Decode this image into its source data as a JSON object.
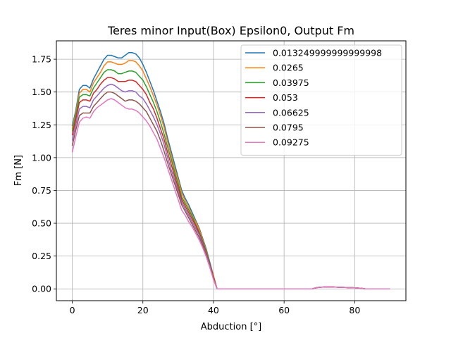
{
  "chart_data": {
    "type": "line",
    "title": "Teres minor Input(Box) Epsilon0, Output Fm",
    "xlabel": "Abduction [°]",
    "ylabel": "Fm [N]",
    "xlim": [
      -4.5,
      94.5
    ],
    "ylim": [
      -0.09,
      1.89
    ],
    "xticks": [
      0,
      20,
      40,
      60,
      80
    ],
    "yticks": [
      0.0,
      0.25,
      0.5,
      0.75,
      1.0,
      1.25,
      1.5,
      1.75
    ],
    "ytick_labels": [
      "0.00",
      "0.25",
      "0.50",
      "0.75",
      "1.00",
      "1.25",
      "1.50",
      "1.75"
    ],
    "grid": true,
    "legend_position": "top-right",
    "base_x": [
      0,
      1,
      2,
      3,
      4,
      5,
      6,
      7,
      8,
      9,
      10,
      11,
      12,
      13,
      14,
      15,
      16,
      17,
      18,
      19,
      20,
      21,
      22,
      23,
      24,
      25,
      26,
      27,
      28,
      29,
      30,
      31,
      32,
      33,
      34,
      35,
      36,
      37,
      38,
      39,
      40,
      41,
      45,
      50,
      55,
      60,
      65,
      68,
      69,
      70,
      72,
      74,
      76,
      78,
      80,
      81,
      82,
      83,
      85,
      87,
      90
    ],
    "series": [
      {
        "name": "0.013249999999999998",
        "color": "#1f77b4",
        "y": [
          1.24,
          1.36,
          1.52,
          1.55,
          1.55,
          1.53,
          1.6,
          1.65,
          1.7,
          1.75,
          1.78,
          1.78,
          1.77,
          1.76,
          1.76,
          1.78,
          1.8,
          1.8,
          1.79,
          1.76,
          1.71,
          1.65,
          1.58,
          1.51,
          1.43,
          1.35,
          1.26,
          1.15,
          1.05,
          0.95,
          0.85,
          0.75,
          0.69,
          0.64,
          0.58,
          0.52,
          0.46,
          0.38,
          0.3,
          0.2,
          0.1,
          0.0,
          0.0,
          0.0,
          0.0,
          0.0,
          0.0,
          0.0,
          0.008,
          0.012,
          0.015,
          0.014,
          0.012,
          0.01,
          0.008,
          0.006,
          0.004,
          0.0,
          0.0,
          0.0,
          0.0
        ]
      },
      {
        "name": "0.0265",
        "color": "#ff7f0e",
        "y": [
          1.22,
          1.34,
          1.49,
          1.52,
          1.52,
          1.5,
          1.57,
          1.61,
          1.65,
          1.7,
          1.73,
          1.73,
          1.72,
          1.71,
          1.71,
          1.72,
          1.74,
          1.74,
          1.73,
          1.7,
          1.66,
          1.6,
          1.54,
          1.47,
          1.4,
          1.32,
          1.23,
          1.12,
          1.02,
          0.92,
          0.83,
          0.73,
          0.67,
          0.62,
          0.56,
          0.51,
          0.45,
          0.37,
          0.29,
          0.19,
          0.1,
          0.0,
          0.0,
          0.0,
          0.0,
          0.0,
          0.0,
          0.0,
          0.008,
          0.012,
          0.015,
          0.014,
          0.012,
          0.01,
          0.008,
          0.006,
          0.004,
          0.0,
          0.0,
          0.0,
          0.0
        ]
      },
      {
        "name": "0.03975",
        "color": "#2ca02c",
        "y": [
          1.2,
          1.32,
          1.46,
          1.48,
          1.48,
          1.47,
          1.53,
          1.57,
          1.61,
          1.65,
          1.67,
          1.67,
          1.66,
          1.64,
          1.64,
          1.65,
          1.66,
          1.66,
          1.65,
          1.62,
          1.59,
          1.54,
          1.48,
          1.42,
          1.35,
          1.27,
          1.18,
          1.08,
          0.99,
          0.89,
          0.8,
          0.7,
          0.65,
          0.6,
          0.55,
          0.49,
          0.43,
          0.36,
          0.28,
          0.19,
          0.09,
          0.0,
          0.0,
          0.0,
          0.0,
          0.0,
          0.0,
          0.0,
          0.008,
          0.012,
          0.015,
          0.014,
          0.012,
          0.01,
          0.008,
          0.006,
          0.004,
          0.0,
          0.0,
          0.0,
          0.0
        ]
      },
      {
        "name": "0.053",
        "color": "#d62728",
        "y": [
          1.17,
          1.29,
          1.42,
          1.44,
          1.44,
          1.43,
          1.49,
          1.52,
          1.56,
          1.59,
          1.61,
          1.61,
          1.6,
          1.58,
          1.58,
          1.58,
          1.59,
          1.59,
          1.58,
          1.55,
          1.52,
          1.48,
          1.42,
          1.37,
          1.3,
          1.22,
          1.14,
          1.04,
          0.95,
          0.86,
          0.77,
          0.68,
          0.63,
          0.58,
          0.53,
          0.48,
          0.42,
          0.35,
          0.27,
          0.18,
          0.09,
          0.0,
          0.0,
          0.0,
          0.0,
          0.0,
          0.0,
          0.0,
          0.008,
          0.012,
          0.015,
          0.014,
          0.012,
          0.01,
          0.008,
          0.006,
          0.004,
          0.0,
          0.0,
          0.0,
          0.0
        ]
      },
      {
        "name": "0.06625",
        "color": "#9467bd",
        "y": [
          1.13,
          1.25,
          1.37,
          1.39,
          1.39,
          1.38,
          1.44,
          1.47,
          1.5,
          1.53,
          1.55,
          1.56,
          1.55,
          1.53,
          1.51,
          1.5,
          1.51,
          1.51,
          1.5,
          1.47,
          1.45,
          1.41,
          1.36,
          1.31,
          1.25,
          1.18,
          1.1,
          1.0,
          0.91,
          0.83,
          0.74,
          0.66,
          0.61,
          0.56,
          0.51,
          0.46,
          0.41,
          0.34,
          0.26,
          0.17,
          0.08,
          0.0,
          0.0,
          0.0,
          0.0,
          0.0,
          0.0,
          0.0,
          0.008,
          0.012,
          0.015,
          0.014,
          0.012,
          0.01,
          0.008,
          0.006,
          0.004,
          0.0,
          0.0,
          0.0,
          0.0
        ]
      },
      {
        "name": "0.0795",
        "color": "#8c564b",
        "y": [
          1.09,
          1.21,
          1.32,
          1.34,
          1.34,
          1.34,
          1.39,
          1.42,
          1.45,
          1.48,
          1.5,
          1.5,
          1.49,
          1.47,
          1.45,
          1.43,
          1.44,
          1.44,
          1.43,
          1.41,
          1.38,
          1.35,
          1.3,
          1.25,
          1.2,
          1.13,
          1.05,
          0.96,
          0.88,
          0.8,
          0.72,
          0.64,
          0.59,
          0.54,
          0.49,
          0.44,
          0.39,
          0.33,
          0.25,
          0.16,
          0.08,
          0.0,
          0.0,
          0.0,
          0.0,
          0.0,
          0.0,
          0.0,
          0.008,
          0.012,
          0.015,
          0.014,
          0.012,
          0.01,
          0.008,
          0.006,
          0.004,
          0.0,
          0.0,
          0.0,
          0.0
        ]
      },
      {
        "name": "0.09275",
        "color": "#e377c2",
        "y": [
          1.04,
          1.16,
          1.27,
          1.3,
          1.31,
          1.3,
          1.35,
          1.38,
          1.4,
          1.42,
          1.44,
          1.45,
          1.44,
          1.42,
          1.4,
          1.38,
          1.37,
          1.37,
          1.36,
          1.34,
          1.31,
          1.28,
          1.24,
          1.19,
          1.14,
          1.07,
          1.0,
          0.92,
          0.84,
          0.76,
          0.68,
          0.6,
          0.56,
          0.51,
          0.47,
          0.42,
          0.37,
          0.31,
          0.24,
          0.16,
          0.07,
          0.0,
          0.0,
          0.0,
          0.0,
          0.0,
          0.0,
          0.0,
          0.008,
          0.012,
          0.015,
          0.014,
          0.012,
          0.01,
          0.008,
          0.006,
          0.004,
          0.0,
          0.0,
          0.0,
          0.0
        ]
      }
    ]
  }
}
